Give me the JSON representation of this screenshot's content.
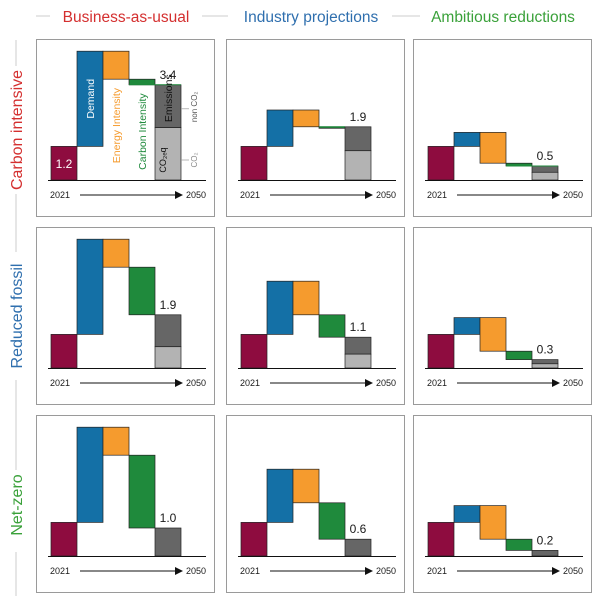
{
  "colors": {
    "base": "#8e0c3f",
    "demand": "#1470a6",
    "energy_intensity": "#f59b2e",
    "carbon_intensity": "#1f8a3c",
    "co2_emissions": "#666666",
    "non_co2_emissions": "#b3b3b3",
    "carbon_intensive_title": "#d42f2f",
    "reduced_fossil_title": "#2f6fae",
    "net_zero_title": "#3aa13a",
    "industry_title": "#2f6fae",
    "ambitious_title": "#3aa13a"
  },
  "columns": [
    "Business-as-usual",
    "Industry projections",
    "Ambitious reductions"
  ],
  "rows": [
    "Carbon intensive",
    "Reduced fossil",
    "Net-zero"
  ],
  "labels": {
    "demand": "Demand",
    "energy_intensity": "Energy Intensity",
    "carbon_intensity": "Carbon Intensity",
    "emissions": "Emissions",
    "co2_zero": "CO₂ₑq",
    "co2": "CO₂",
    "non_co2": "non CO₂"
  },
  "chart_data": [
    {
      "type": "bar",
      "row": "Carbon intensive",
      "column": "Business-as-usual",
      "start_year": "2021",
      "end_year": "2050",
      "start_value": 1.2,
      "end_value": 3.4,
      "steps": {
        "demand": 3.4,
        "energy_intensity": -1.0,
        "carbon_intensity": -0.2
      },
      "co2_share": 0.45,
      "start_label": "1.2",
      "end_label": "3.4"
    },
    {
      "type": "bar",
      "row": "Carbon intensive",
      "column": "Industry projections",
      "start_year": "2021",
      "end_year": "2050",
      "start_value": 1.2,
      "end_value": 1.9,
      "steps": {
        "demand": 1.3,
        "energy_intensity": -0.6,
        "carbon_intensity": 0.0
      },
      "co2_share": 0.45,
      "end_label": "1.9"
    },
    {
      "type": "bar",
      "row": "Carbon intensive",
      "column": "Ambitious reductions",
      "start_year": "2021",
      "end_year": "2050",
      "start_value": 1.2,
      "end_value": 0.5,
      "steps": {
        "demand": 0.5,
        "energy_intensity": -1.1,
        "carbon_intensity": -0.1
      },
      "co2_share": 0.45,
      "end_label": "0.5"
    },
    {
      "type": "bar",
      "row": "Reduced fossil",
      "column": "Business-as-usual",
      "start_year": "2021",
      "end_year": "2050",
      "start_value": 1.2,
      "end_value": 1.9,
      "steps": {
        "demand": 3.4,
        "energy_intensity": -1.0,
        "carbon_intensity": -1.7
      },
      "co2_share": 0.6,
      "end_label": "1.9"
    },
    {
      "type": "bar",
      "row": "Reduced fossil",
      "column": "Industry projections",
      "start_year": "2021",
      "end_year": "2050",
      "start_value": 1.2,
      "end_value": 1.1,
      "steps": {
        "demand": 1.9,
        "energy_intensity": -1.2,
        "carbon_intensity": -0.8
      },
      "co2_share": 0.55,
      "end_label": "1.1"
    },
    {
      "type": "bar",
      "row": "Reduced fossil",
      "column": "Ambitious reductions",
      "start_year": "2021",
      "end_year": "2050",
      "start_value": 1.2,
      "end_value": 0.3,
      "steps": {
        "demand": 0.6,
        "energy_intensity": -1.2,
        "carbon_intensity": -0.3
      },
      "co2_share": 0.5,
      "end_label": "0.3"
    },
    {
      "type": "bar",
      "row": "Net-zero",
      "column": "Business-as-usual",
      "start_year": "2021",
      "end_year": "2050",
      "start_value": 1.2,
      "end_value": 1.0,
      "steps": {
        "demand": 3.4,
        "energy_intensity": -1.0,
        "carbon_intensity": -2.6
      },
      "co2_share": 1.0,
      "end_label": "1.0"
    },
    {
      "type": "bar",
      "row": "Net-zero",
      "column": "Industry projections",
      "start_year": "2021",
      "end_year": "2050",
      "start_value": 1.2,
      "end_value": 0.6,
      "steps": {
        "demand": 1.9,
        "energy_intensity": -1.2,
        "carbon_intensity": -1.3
      },
      "co2_share": 1.0,
      "end_label": "0.6"
    },
    {
      "type": "bar",
      "row": "Net-zero",
      "column": "Ambitious reductions",
      "start_year": "2021",
      "end_year": "2050",
      "start_value": 1.2,
      "end_value": 0.2,
      "steps": {
        "demand": 0.6,
        "energy_intensity": -1.2,
        "carbon_intensity": -0.4
      },
      "co2_share": 1.0,
      "end_label": "0.2"
    }
  ]
}
